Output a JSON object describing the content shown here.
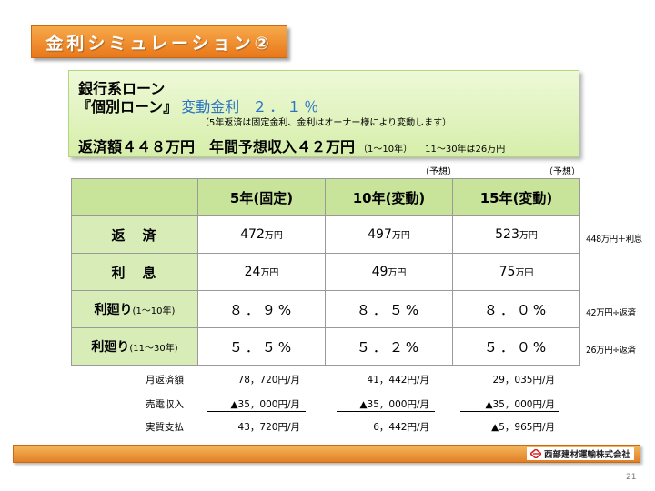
{
  "title": "金利シミュレーション②",
  "info": {
    "line1": "銀行系ローン",
    "line2_prefix": "『個別ローン』",
    "line2_rate_label": "変動金利",
    "line2_rate_value": "２．１％",
    "note": "（5年返済は固定金利、金利はオーナー様により変動します）",
    "line3_main": "返済額４４８万円　年間予想収入４２万円",
    "line3_small1": "（1～10年）",
    "line3_small2": "11～30年は26万円"
  },
  "forecast_labels": [
    "（予想）",
    "（予想）"
  ],
  "table": {
    "headers": [
      "5年(固定)",
      "10年(変動)",
      "15年(変動)"
    ],
    "rows": [
      {
        "label": "返　済",
        "label_sub": "",
        "values": [
          "472",
          "497",
          "523"
        ],
        "unit": "万円"
      },
      {
        "label": "利　息",
        "label_sub": "",
        "values": [
          "24",
          "49",
          "75"
        ],
        "unit": "万円"
      },
      {
        "label": "利廻り",
        "label_sub": "(1～10年)",
        "values": [
          "８．９%",
          "８．５%",
          "８．０%"
        ],
        "unit": ""
      },
      {
        "label": "利廻り",
        "label_sub": "(11～30年)",
        "values": [
          "５．５%",
          "５．２%",
          "５．０%"
        ],
        "unit": ""
      }
    ]
  },
  "side_notes": [
    "448万円＋利息",
    "42万円÷返済",
    "26万円÷返済"
  ],
  "summary": [
    {
      "label": "月返済額",
      "values": [
        "78，720円/月",
        "41，442円/月",
        "29，035円/月"
      ]
    },
    {
      "label": "売電収入",
      "values": [
        "▲35，000円/月",
        "▲35，000円/月",
        "▲35，000円/月"
      ]
    },
    {
      "label": "実質支払",
      "values": [
        "43，720円/月",
        "6，442円/月",
        "▲5，965円/月"
      ]
    }
  ],
  "footer": {
    "company": "西部建材運輸株式会社",
    "logo_icon": "red-diamond-logo-icon"
  },
  "page_number": "21",
  "colors": {
    "banner": "#e8781a",
    "info_box": "#d6eeaa",
    "table_header": "#c7e49a",
    "rate_text": "#2a74c4"
  }
}
